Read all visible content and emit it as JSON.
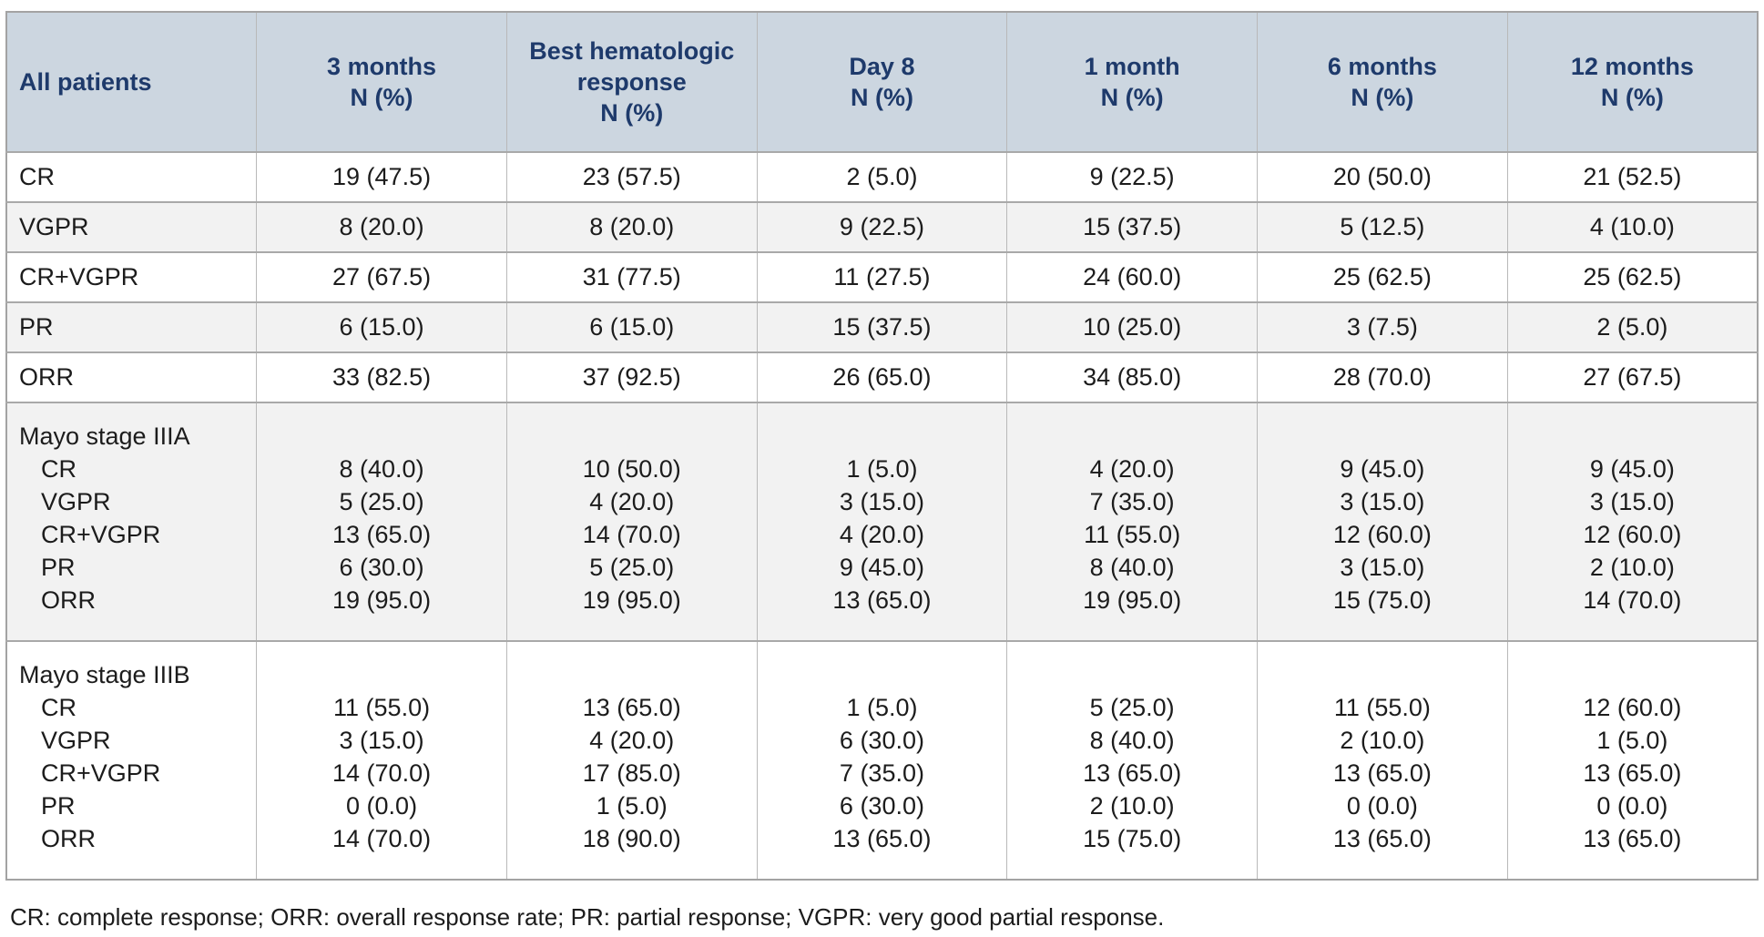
{
  "table": {
    "header": {
      "col0": "All patients",
      "cols": [
        {
          "lines": [
            "3 months",
            "N (%)"
          ]
        },
        {
          "lines": [
            "Best hematologic",
            "response",
            "N (%)"
          ]
        },
        {
          "lines": [
            "Day 8",
            "N (%)"
          ]
        },
        {
          "lines": [
            "1 month",
            "N (%)"
          ]
        },
        {
          "lines": [
            "6 months",
            "N (%)"
          ]
        },
        {
          "lines": [
            "12 months",
            "N (%)"
          ]
        }
      ]
    },
    "rows": [
      {
        "label": "CR",
        "values": [
          "19 (47.5)",
          "23 (57.5)",
          "2 (5.0)",
          "9 (22.5)",
          "20 (50.0)",
          "21 (52.5)"
        ]
      },
      {
        "label": "VGPR",
        "values": [
          "8 (20.0)",
          "8 (20.0)",
          "9 (22.5)",
          "15 (37.5)",
          "5 (12.5)",
          "4 (10.0)"
        ]
      },
      {
        "label": "CR+VGPR",
        "values": [
          "27 (67.5)",
          "31 (77.5)",
          "11 (27.5)",
          "24 (60.0)",
          "25 (62.5)",
          "25 (62.5)"
        ]
      },
      {
        "label": "PR",
        "values": [
          "6 (15.0)",
          "6 (15.0)",
          "15 (37.5)",
          "10 (25.0)",
          "3 (7.5)",
          "2 (5.0)"
        ]
      },
      {
        "label": "ORR",
        "values": [
          "33 (82.5)",
          "37 (92.5)",
          "26 (65.0)",
          "34 (85.0)",
          "28 (70.0)",
          "27 (67.5)"
        ]
      }
    ],
    "groups": [
      {
        "label": "Mayo stage IIIA",
        "rows": [
          {
            "label": "CR",
            "values": [
              "8 (40.0)",
              "10 (50.0)",
              "1 (5.0)",
              "4 (20.0)",
              "9 (45.0)",
              "9 (45.0)"
            ]
          },
          {
            "label": "VGPR",
            "values": [
              "5 (25.0)",
              "4 (20.0)",
              "3 (15.0)",
              "7 (35.0)",
              "3 (15.0)",
              "3 (15.0)"
            ]
          },
          {
            "label": "CR+VGPR",
            "values": [
              "13 (65.0)",
              "14 (70.0)",
              "4 (20.0)",
              "11 (55.0)",
              "12 (60.0)",
              "12 (60.0)"
            ]
          },
          {
            "label": "PR",
            "values": [
              "6 (30.0)",
              "5 (25.0)",
              "9 (45.0)",
              "8 (40.0)",
              "3 (15.0)",
              "2 (10.0)"
            ]
          },
          {
            "label": "ORR",
            "values": [
              "19 (95.0)",
              "19 (95.0)",
              "13 (65.0)",
              "19 (95.0)",
              "15 (75.0)",
              "14 (70.0)"
            ]
          }
        ]
      },
      {
        "label": "Mayo stage IIIB",
        "rows": [
          {
            "label": "CR",
            "values": [
              "11 (55.0)",
              "13 (65.0)",
              "1 (5.0)",
              "5 (25.0)",
              "11 (55.0)",
              "12 (60.0)"
            ]
          },
          {
            "label": "VGPR",
            "values": [
              "3 (15.0)",
              "4 (20.0)",
              "6 (30.0)",
              "8 (40.0)",
              "2 (10.0)",
              "1 (5.0)"
            ]
          },
          {
            "label": "CR+VGPR",
            "values": [
              "14 (70.0)",
              "17 (85.0)",
              "7 (35.0)",
              "13 (65.0)",
              "13 (65.0)",
              "13 (65.0)"
            ]
          },
          {
            "label": "PR",
            "values": [
              "0 (0.0)",
              "1 (5.0)",
              "6 (30.0)",
              "2 (10.0)",
              "0 (0.0)",
              "0 (0.0)"
            ]
          },
          {
            "label": "ORR",
            "values": [
              "14 (70.0)",
              "18 (90.0)",
              "13 (65.0)",
              "15 (75.0)",
              "13 (65.0)",
              "13 (65.0)"
            ]
          }
        ]
      }
    ],
    "footnote": "CR: complete response; ORR: overall response rate; PR: partial response; VGPR: very good partial response."
  },
  "colors": {
    "header_bg": "#ccd6e0",
    "header_text": "#1e3a6b",
    "row_alt_bg": "#f2f2f2",
    "body_text": "#1c1c1c",
    "border": "#a9a9a9"
  }
}
